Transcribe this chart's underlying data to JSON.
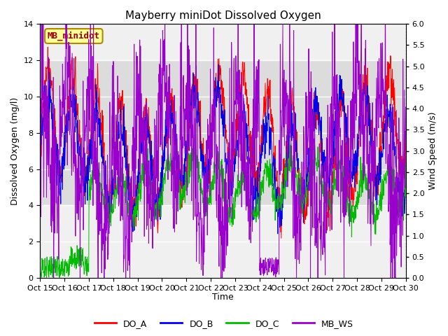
{
  "title": "Mayberry miniDot Dissolved Oxygen",
  "ylabel_left": "Dissolved Oxygen (mg/l)",
  "ylabel_right": "Wind Speed (m/s)",
  "xlabel": "Time",
  "ylim_left": [
    0,
    14
  ],
  "ylim_right": [
    0.0,
    6.0
  ],
  "yticks_left": [
    0,
    2,
    4,
    6,
    8,
    10,
    12,
    14
  ],
  "yticks_right": [
    0.0,
    0.5,
    1.0,
    1.5,
    2.0,
    2.5,
    3.0,
    3.5,
    4.0,
    4.5,
    5.0,
    5.5,
    6.0
  ],
  "xticklabels": [
    "Oct 15",
    "Oct 16",
    "Oct 17",
    "Oct 18",
    "Oct 19",
    "Oct 20",
    "Oct 21",
    "Oct 22",
    "Oct 23",
    "Oct 24",
    "Oct 25",
    "Oct 26",
    "Oct 27",
    "Oct 28",
    "Oct 29",
    "Oct 30"
  ],
  "color_DO_A": "#ff0000",
  "color_DO_B": "#0000ee",
  "color_DO_C": "#00bb00",
  "color_MB_WS": "#9900cc",
  "legend_label": "MB_minidot",
  "legend_entries": [
    "DO_A",
    "DO_B",
    "DO_C",
    "MB_WS"
  ],
  "gray_band1": [
    4.0,
    8.0
  ],
  "gray_band2": [
    8.0,
    12.0
  ],
  "band_color": "#dcdcdc",
  "background_color": "#f0f0f0",
  "n_points": 1440,
  "seed": 42
}
